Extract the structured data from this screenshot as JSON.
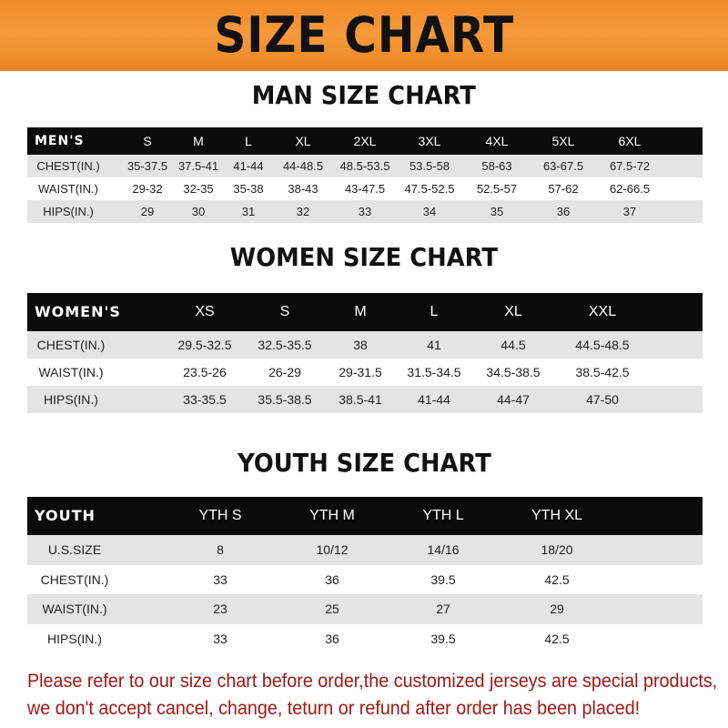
{
  "banner": "SIZE CHART",
  "men": {
    "title": "MAN SIZE CHART",
    "header": [
      "MEN'S",
      "S",
      "M",
      "L",
      "XL",
      "2XL",
      "3XL",
      "4XL",
      "5XL",
      "6XL"
    ],
    "rows": [
      [
        "CHEST(IN.)",
        "35-37.5",
        "37.5-41",
        "41-44",
        "44-48.5",
        "48.5-53.5",
        "53.5-58",
        "58-63",
        "63-67.5",
        "67.5-72"
      ],
      [
        "WAIST(IN.)",
        "29-32",
        "32-35",
        "35-38",
        "38-43",
        "43-47.5",
        "47.5-52.5",
        "52.5-57",
        "57-62",
        "62-66.5"
      ],
      [
        "HIPS(IN.)",
        "29",
        "30",
        "31",
        "32",
        "33",
        "34",
        "35",
        "36",
        "37"
      ]
    ]
  },
  "women": {
    "title": "WOMEN SIZE CHART",
    "header": [
      "WOMEN'S",
      "XS",
      "S",
      "M",
      "L",
      "XL",
      "XXL"
    ],
    "rows": [
      [
        "CHEST(IN.)",
        "29.5-32.5",
        "32.5-35.5",
        "38",
        "41",
        "44.5",
        "44.5-48.5"
      ],
      [
        "WAIST(IN.)",
        "23.5-26",
        "26-29",
        "29-31.5",
        "31.5-34.5",
        "34.5-38.5",
        "38.5-42.5"
      ],
      [
        "HIPS(IN.)",
        "33-35.5",
        "35.5-38.5",
        "38.5-41",
        "41-44",
        "44-47",
        "47-50"
      ]
    ]
  },
  "youth": {
    "title": "YOUTH SIZE CHART",
    "header": [
      "YOUTH",
      "YTH S",
      "YTH M",
      "YTH L",
      "YTH XL"
    ],
    "rows": [
      [
        "U.S.SIZE",
        "8",
        "10/12",
        "14/16",
        "18/20"
      ],
      [
        "CHEST(IN.)",
        "33",
        "36",
        "39.5",
        "42.5"
      ],
      [
        "WAIST(IN.)",
        "23",
        "25",
        "27",
        "29"
      ],
      [
        "HIPS(IN.)",
        "33",
        "36",
        "39.5",
        "42.5"
      ]
    ]
  },
  "notice": [
    "Please refer to our size chart before order,the customized jerseys are special products,",
    "we don't accept cancel, change, teturn or refund after order has been placed!"
  ],
  "colors": {
    "banner": "#f08a2a",
    "header_row": "#0b0b0b",
    "stripe": "#e4e4e4",
    "notice": "#a01818"
  }
}
